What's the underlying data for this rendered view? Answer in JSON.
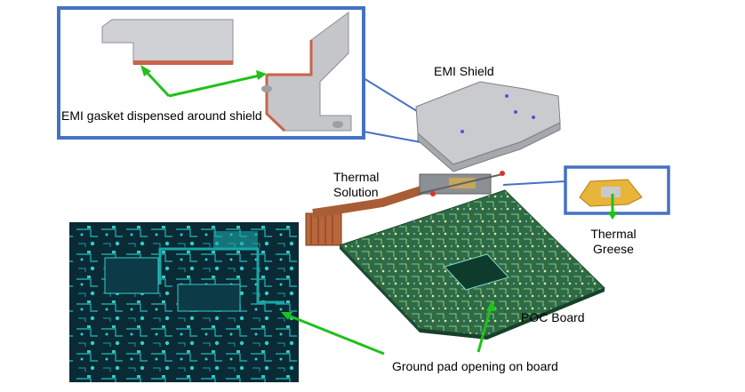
{
  "labels": {
    "emi_gasket": "EMI gasket dispensed around shield",
    "emi_shield": "EMI Shield",
    "thermal_solution_line1": "Thermal",
    "thermal_solution_line2": "Solution",
    "thermal_greese_line1": "Thermal",
    "thermal_greese_line2": "Greese",
    "poc_board": "POC Board",
    "ground_pad": "Ground pad opening on board"
  },
  "colors": {
    "callout_border": "#4472c4",
    "arrow": "#22c01b",
    "pcb_dark": "#0a2a35",
    "pcb_trace": "#1aa6a8",
    "board_green": "#2e6b45",
    "copper": "#b8663a",
    "shield_gray": "#c9cbcf",
    "gasket": "#c9634a"
  },
  "icons": {
    "arrow_head": "arrowhead"
  }
}
